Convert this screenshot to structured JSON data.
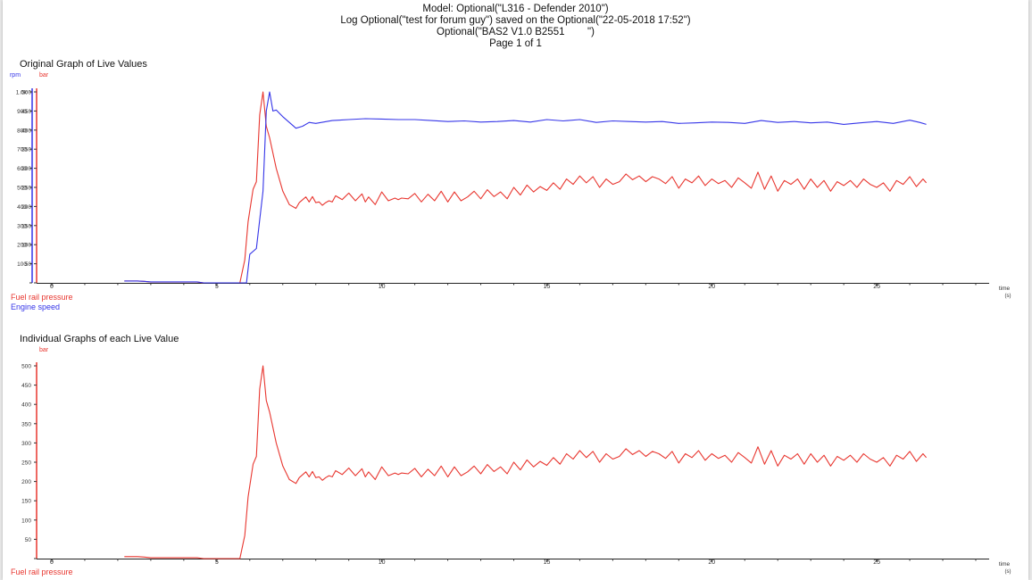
{
  "header": {
    "line1": "Model: Optional(\"L316 - Defender 2010\")",
    "line2": "Log Optional(\"test for forum guy\") saved on the Optional(\"22-05-2018 17:52\")",
    "line3": "Optional(\"BAS2 V1.0 B2551        \")",
    "line4": "Page 1 of 1"
  },
  "colors": {
    "pressure": "#e8362f",
    "speed": "#3535e8",
    "axis": "#222222"
  },
  "chart_data": [
    {
      "type": "line",
      "title": "Original Graph of Live Values",
      "xlabel": "time",
      "xunit": "(s)",
      "xlim": [
        0,
        28
      ],
      "xticks": [
        "0",
        "5",
        "10",
        "15",
        "20",
        "25"
      ],
      "axes": [
        {
          "unit": "rpm",
          "ylim": [
            0,
            1000
          ],
          "ticks": [
            "0",
            "100",
            "200",
            "300",
            "400",
            "500",
            "600",
            "700",
            "800",
            "900",
            "1.0k"
          ]
        },
        {
          "unit": "bar",
          "ylim": [
            0,
            500
          ],
          "ticks": [
            "0",
            "50",
            "100",
            "150",
            "200",
            "250",
            "300",
            "350",
            "400",
            "450",
            "500"
          ]
        }
      ],
      "legend": [
        "Fuel rail pressure",
        "Engine speed"
      ],
      "series": [
        {
          "name": "Fuel rail pressure",
          "axis": "bar",
          "color": "#e8362f",
          "x": [
            2.2,
            2.6,
            2.8,
            3.0,
            3.5,
            4.0,
            4.4,
            4.6,
            5.0,
            5.5,
            5.7,
            5.85,
            5.95,
            6.1,
            6.2,
            6.3,
            6.4,
            6.5,
            6.6,
            6.8,
            7.0,
            7.2,
            7.4,
            7.5,
            7.7,
            7.8,
            7.9,
            8.0,
            8.1,
            8.2,
            8.3,
            8.4,
            8.5,
            8.6,
            8.8,
            9.0,
            9.2,
            9.4,
            9.5,
            9.6,
            9.7,
            9.8,
            10.0,
            10.2,
            10.4,
            10.5,
            10.6,
            10.8,
            11.0,
            11.2,
            11.4,
            11.6,
            11.8,
            12.0,
            12.2,
            12.4,
            12.6,
            12.8,
            13.0,
            13.2,
            13.4,
            13.6,
            13.8,
            14.0,
            14.2,
            14.4,
            14.6,
            14.8,
            15.0,
            15.2,
            15.4,
            15.6,
            15.8,
            16.0,
            16.2,
            16.4,
            16.6,
            16.8,
            17.0,
            17.2,
            17.4,
            17.6,
            17.8,
            18.0,
            18.2,
            18.4,
            18.6,
            18.8,
            19.0,
            19.2,
            19.4,
            19.6,
            19.8,
            20.0,
            20.2,
            20.4,
            20.6,
            20.8,
            21.0,
            21.2,
            21.4,
            21.6,
            21.8,
            22.0,
            22.2,
            22.4,
            22.6,
            22.8,
            23.0,
            23.2,
            23.4,
            23.6,
            23.8,
            24.0,
            24.2,
            24.4,
            24.6,
            24.8,
            25.0,
            25.2,
            25.4,
            25.6,
            25.8,
            26.0,
            26.2,
            26.4,
            26.5
          ],
          "y": [
            5,
            5,
            4,
            2,
            2,
            2,
            2,
            0,
            0,
            0,
            0,
            60,
            160,
            245,
            265,
            440,
            500,
            410,
            380,
            300,
            240,
            205,
            195,
            210,
            225,
            212,
            226,
            210,
            212,
            203,
            210,
            215,
            212,
            228,
            218,
            235,
            215,
            233,
            212,
            225,
            215,
            205,
            238,
            215,
            222,
            218,
            222,
            220,
            234,
            212,
            232,
            215,
            240,
            212,
            238,
            215,
            225,
            240,
            220,
            244,
            226,
            238,
            220,
            250,
            230,
            256,
            238,
            252,
            242,
            262,
            245,
            272,
            258,
            280,
            262,
            278,
            250,
            272,
            258,
            265,
            285,
            270,
            280,
            265,
            278,
            272,
            260,
            278,
            248,
            272,
            262,
            280,
            255,
            272,
            260,
            268,
            250,
            275,
            262,
            248,
            290,
            245,
            280,
            240,
            268,
            258,
            272,
            245,
            272,
            250,
            268,
            240,
            265,
            255,
            268,
            250,
            272,
            258,
            250,
            262,
            240,
            268,
            258,
            278,
            252,
            272,
            262
          ]
        },
        {
          "name": "Engine speed",
          "axis": "rpm",
          "color": "#3535e8",
          "x": [
            2.2,
            2.6,
            2.8,
            3.0,
            3.5,
            4.0,
            4.4,
            4.6,
            5.0,
            5.5,
            5.9,
            6.0,
            6.2,
            6.4,
            6.5,
            6.6,
            6.7,
            6.8,
            7.0,
            7.2,
            7.4,
            7.6,
            7.8,
            8.0,
            8.5,
            9.0,
            9.5,
            10.0,
            10.5,
            11.0,
            11.5,
            12.0,
            12.5,
            13.0,
            13.5,
            14.0,
            14.5,
            15.0,
            15.5,
            16.0,
            16.5,
            17.0,
            17.5,
            18.0,
            18.5,
            19.0,
            19.5,
            20.0,
            20.5,
            21.0,
            21.5,
            22.0,
            22.5,
            23.0,
            23.5,
            24.0,
            24.5,
            25.0,
            25.5,
            26.0,
            26.3,
            26.5
          ],
          "y": [
            10,
            10,
            8,
            5,
            5,
            5,
            5,
            0,
            0,
            0,
            0,
            150,
            180,
            480,
            900,
            1000,
            900,
            905,
            870,
            840,
            810,
            820,
            840,
            835,
            850,
            855,
            860,
            858,
            855,
            855,
            850,
            845,
            848,
            842,
            845,
            850,
            842,
            855,
            848,
            855,
            840,
            848,
            845,
            842,
            845,
            835,
            838,
            842,
            840,
            835,
            850,
            840,
            845,
            838,
            842,
            830,
            838,
            845,
            835,
            852,
            840,
            830
          ]
        }
      ]
    },
    {
      "type": "line",
      "title": "Individual Graphs of each Live Value",
      "xlabel": "time",
      "xunit": "(s)",
      "xlim": [
        0,
        28
      ],
      "xticks": [
        "0",
        "5",
        "10",
        "15",
        "20",
        "25"
      ],
      "axes": [
        {
          "unit": "bar",
          "ylim": [
            0,
            500
          ],
          "ticks": [
            "0",
            "50",
            "100",
            "150",
            "200",
            "250",
            "300",
            "350",
            "400",
            "450",
            "500"
          ]
        }
      ],
      "legend": [
        "Fuel rail pressure"
      ],
      "series": [
        {
          "name": "Fuel rail pressure",
          "axis": "bar",
          "color": "#e8362f",
          "x": [
            2.2,
            2.6,
            2.8,
            3.0,
            3.5,
            4.0,
            4.4,
            4.6,
            5.0,
            5.5,
            5.7,
            5.85,
            5.95,
            6.1,
            6.2,
            6.3,
            6.4,
            6.5,
            6.6,
            6.8,
            7.0,
            7.2,
            7.4,
            7.5,
            7.7,
            7.8,
            7.9,
            8.0,
            8.1,
            8.2,
            8.3,
            8.4,
            8.5,
            8.6,
            8.8,
            9.0,
            9.2,
            9.4,
            9.5,
            9.6,
            9.7,
            9.8,
            10.0,
            10.2,
            10.4,
            10.5,
            10.6,
            10.8,
            11.0,
            11.2,
            11.4,
            11.6,
            11.8,
            12.0,
            12.2,
            12.4,
            12.6,
            12.8,
            13.0,
            13.2,
            13.4,
            13.6,
            13.8,
            14.0,
            14.2,
            14.4,
            14.6,
            14.8,
            15.0,
            15.2,
            15.4,
            15.6,
            15.8,
            16.0,
            16.2,
            16.4,
            16.6,
            16.8,
            17.0,
            17.2,
            17.4,
            17.6,
            17.8,
            18.0,
            18.2,
            18.4,
            18.6,
            18.8,
            19.0,
            19.2,
            19.4,
            19.6,
            19.8,
            20.0,
            20.2,
            20.4,
            20.6,
            20.8,
            21.0,
            21.2,
            21.4,
            21.6,
            21.8,
            22.0,
            22.2,
            22.4,
            22.6,
            22.8,
            23.0,
            23.2,
            23.4,
            23.6,
            23.8,
            24.0,
            24.2,
            24.4,
            24.6,
            24.8,
            25.0,
            25.2,
            25.4,
            25.6,
            25.8,
            26.0,
            26.2,
            26.4,
            26.5
          ],
          "y": [
            5,
            5,
            4,
            2,
            2,
            2,
            2,
            0,
            0,
            0,
            0,
            60,
            160,
            245,
            265,
            440,
            500,
            410,
            380,
            300,
            240,
            205,
            195,
            210,
            225,
            212,
            226,
            210,
            212,
            203,
            210,
            215,
            212,
            228,
            218,
            235,
            215,
            233,
            212,
            225,
            215,
            205,
            238,
            215,
            222,
            218,
            222,
            220,
            234,
            212,
            232,
            215,
            240,
            212,
            238,
            215,
            225,
            240,
            220,
            244,
            226,
            238,
            220,
            250,
            230,
            256,
            238,
            252,
            242,
            262,
            245,
            272,
            258,
            280,
            262,
            278,
            250,
            272,
            258,
            265,
            285,
            270,
            280,
            265,
            278,
            272,
            260,
            278,
            248,
            272,
            262,
            280,
            255,
            272,
            260,
            268,
            250,
            275,
            262,
            248,
            290,
            245,
            280,
            240,
            268,
            258,
            272,
            245,
            272,
            250,
            268,
            240,
            265,
            255,
            268,
            250,
            272,
            258,
            250,
            262,
            240,
            268,
            258,
            278,
            252,
            272,
            262
          ]
        }
      ]
    }
  ]
}
